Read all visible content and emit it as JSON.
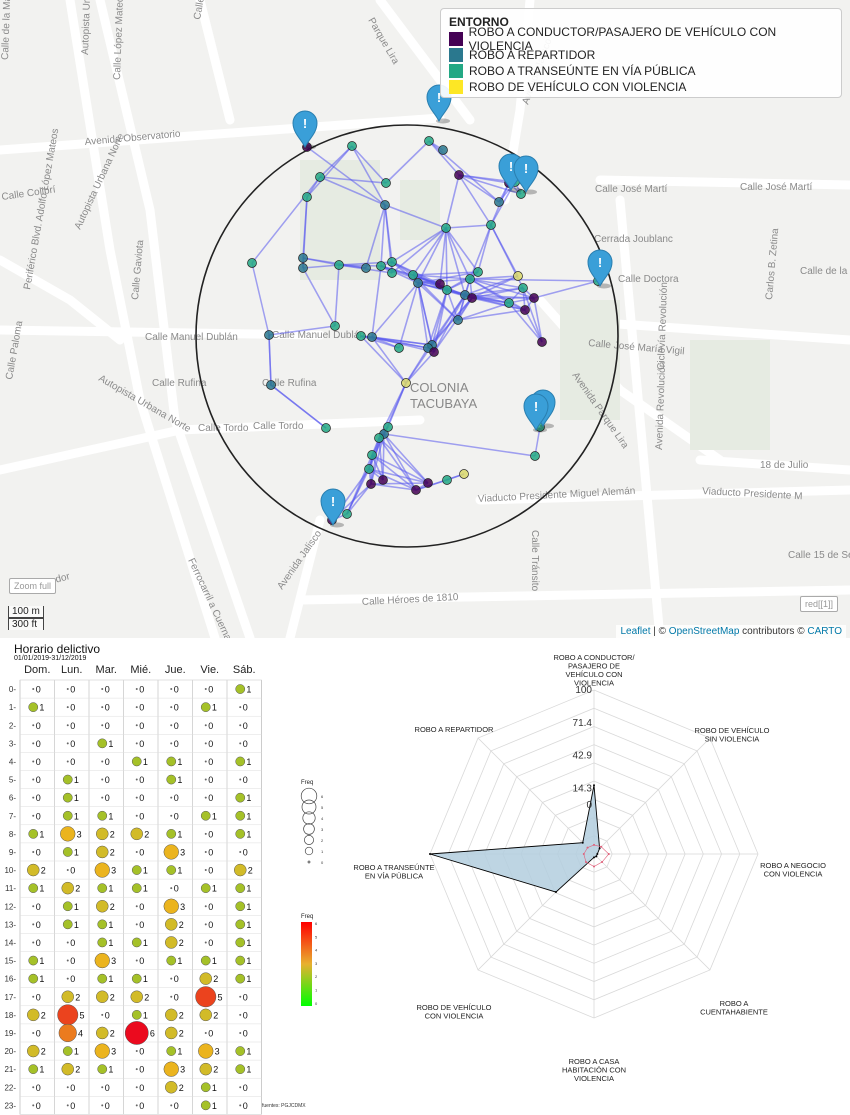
{
  "map": {
    "legend": {
      "title": "ENTORNO",
      "items": [
        {
          "label": "ROBO A CONDUCTOR/PASAJERO DE VEHÍCULO CON VIOLENCIA",
          "color": "#440154"
        },
        {
          "label": "ROBO A REPARTIDOR",
          "color": "#2a788e"
        },
        {
          "label": "ROBO A TRANSEÚNTE EN VÍA PÚBLICA",
          "color": "#22a884"
        },
        {
          "label": "ROBO DE VEHÍCULO CON VIOLENCIA",
          "color": "#fde725"
        }
      ]
    },
    "zoom_full_label": "Zoom full",
    "layer_button_label": "red[[1]]",
    "scale": {
      "metric": "100 m",
      "imperial": "300 ft"
    },
    "attribution": {
      "leaflet": "Leaflet",
      "sep1": " | © ",
      "osm": "OpenStreetMap",
      "sep2": " contributors © ",
      "carto": "CARTO"
    },
    "street_labels": [
      "Avenida Observatorio",
      "Calle José Martí",
      "Calle José Martí",
      "Cerrada Joublanc",
      "Calle Doctora",
      "Calle Manuel Dublán",
      "Calle Manuel Dublán",
      "Calle José María Vigil",
      "Calle Rufina",
      "Calle Rufina",
      "Calle Tordo",
      "Calle Tordo",
      "COLONIA",
      "TACUBAYA",
      "18 de Julio",
      "Viaducto Presidente Miguel Alemán",
      "Viaducto Presidente M",
      "Calle Héroes de 1810",
      "Avenida Jalisco",
      "Avenida Parque Lira",
      "Autopista Urbana Norte",
      "Periférico Blvd. Adolfo López Mateos",
      "Avenida Jalisco",
      "Calle Colibrí",
      "Calle Gaviota",
      "Calle Paloma",
      "Calle Condor",
      "Ferrocarril a Cuernavaca",
      "Calle 15 de Se",
      "Avenida Revolución",
      "Ciclovía Revolución",
      "Carlos B. Zetina",
      "Calle de la",
      "Calle Tránsito",
      "Parque Lira",
      "Autopista Urbana Norte",
      "Autopista Urbana",
      "Calle López Mateos",
      "Calle Camino",
      "Calle de la Marina"
    ],
    "point_colors": {
      "purple": "#440154",
      "blue": "#2a788e",
      "teal": "#22a884",
      "yellow": "#d9d86a"
    },
    "marker_icon": "exclamation-marker-icon"
  },
  "heatmap": {
    "title": "Horario delictivo",
    "date_range": "01/01/2019-31/12/2019",
    "days": [
      "Dom.",
      "Lun.",
      "Mar.",
      "Mié.",
      "Jue.",
      "Vie.",
      "Sáb."
    ],
    "hours": [
      "0-",
      "1-",
      "2-",
      "3-",
      "4-",
      "5-",
      "6-",
      "7-",
      "8-",
      "9-",
      "10-",
      "11-",
      "12-",
      "13-",
      "14-",
      "15-",
      "16-",
      "17-",
      "18-",
      "19-",
      "20-",
      "21-",
      "22-",
      "23-"
    ],
    "values": [
      [
        0,
        0,
        0,
        0,
        0,
        0,
        1
      ],
      [
        1,
        0,
        0,
        0,
        0,
        1,
        0
      ],
      [
        0,
        0,
        0,
        0,
        0,
        0,
        0
      ],
      [
        0,
        0,
        1,
        0,
        0,
        0,
        0
      ],
      [
        0,
        0,
        0,
        1,
        1,
        0,
        1
      ],
      [
        0,
        1,
        0,
        0,
        1,
        0,
        0
      ],
      [
        0,
        1,
        0,
        0,
        0,
        0,
        1
      ],
      [
        0,
        1,
        1,
        0,
        0,
        1,
        1
      ],
      [
        1,
        3,
        2,
        2,
        1,
        0,
        1
      ],
      [
        0,
        1,
        2,
        0,
        3,
        0,
        0
      ],
      [
        2,
        0,
        3,
        1,
        1,
        0,
        2
      ],
      [
        1,
        2,
        1,
        1,
        0,
        1,
        1
      ],
      [
        0,
        1,
        2,
        0,
        3,
        0,
        1
      ],
      [
        0,
        1,
        1,
        0,
        2,
        0,
        1
      ],
      [
        0,
        0,
        1,
        1,
        2,
        0,
        1
      ],
      [
        1,
        0,
        3,
        0,
        1,
        1,
        1
      ],
      [
        1,
        0,
        1,
        1,
        0,
        2,
        1
      ],
      [
        0,
        2,
        2,
        2,
        0,
        5,
        0
      ],
      [
        2,
        5,
        0,
        1,
        2,
        2,
        0
      ],
      [
        0,
        4,
        2,
        6,
        2,
        0,
        0
      ],
      [
        2,
        1,
        3,
        0,
        1,
        3,
        1
      ],
      [
        1,
        2,
        1,
        0,
        3,
        2,
        1
      ],
      [
        0,
        0,
        0,
        0,
        2,
        1,
        0
      ],
      [
        0,
        0,
        0,
        0,
        0,
        1,
        0
      ]
    ],
    "size_legend": {
      "title": "Freq",
      "levels": [
        "6",
        "5",
        "4",
        "3",
        "2",
        "1",
        "0"
      ]
    },
    "color_legend": {
      "title": "Freq",
      "ticks": [
        "6",
        "5",
        "4",
        "3",
        "2",
        "1",
        "0"
      ],
      "low_color": "#00ff00",
      "high_color": "#ff0000"
    },
    "source": "fuentes: PGJCDMX"
  },
  "radar": {
    "axes": [
      "ROBO A CONDUCTOR/\nPASAJERO DE\nVEHÍCULO CON\nVIOLENCIA",
      "ROBO DE VEHÍCULO\nSIN VIOLENCIA",
      "ROBO A NEGOCIO\nCON VIOLENCIA",
      "ROBO A\nCUENTAHABIENTE",
      "ROBO A CASA\nHABITACIÓN CON\nVIOLENCIA",
      "ROBO DE VEHÍCULO\nCON VIOLENCIA",
      "ROBO A TRANSEÚNTE\nEN VÍA PÚBLICA",
      "ROBO A REPARTIDOR"
    ],
    "ticks": [
      "100",
      "71.4",
      "42.9",
      "14.3",
      "0"
    ],
    "max": 100,
    "min": -42.9,
    "series": [
      {
        "values": [
          17,
          -36,
          -40,
          -40,
          -40,
          4,
          100,
          -29
        ],
        "fill": "#b3cede",
        "stroke": "#000000"
      },
      {
        "values": [
          -35,
          -34,
          -30,
          -33,
          -32,
          -33,
          -34,
          -35
        ],
        "fill": "none",
        "stroke": "#e0607a"
      }
    ]
  }
}
